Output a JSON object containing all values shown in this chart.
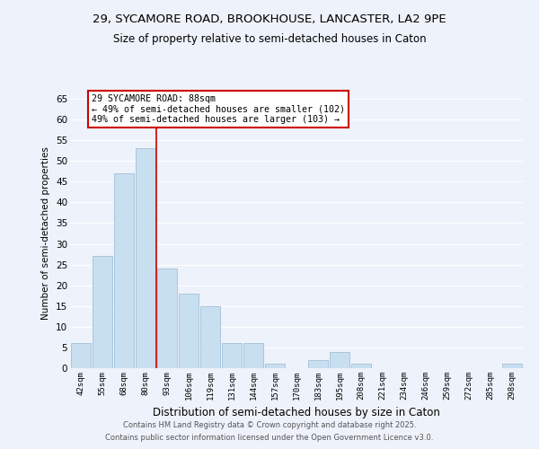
{
  "title_line1": "29, SYCAMORE ROAD, BROOKHOUSE, LANCASTER, LA2 9PE",
  "title_line2": "Size of property relative to semi-detached houses in Caton",
  "xlabel": "Distribution of semi-detached houses by size in Caton",
  "ylabel": "Number of semi-detached properties",
  "bar_labels": [
    "42sqm",
    "55sqm",
    "68sqm",
    "80sqm",
    "93sqm",
    "106sqm",
    "119sqm",
    "131sqm",
    "144sqm",
    "157sqm",
    "170sqm",
    "183sqm",
    "195sqm",
    "208sqm",
    "221sqm",
    "234sqm",
    "246sqm",
    "259sqm",
    "272sqm",
    "285sqm",
    "298sqm"
  ],
  "bar_values": [
    6,
    27,
    47,
    53,
    24,
    18,
    15,
    6,
    6,
    1,
    0,
    2,
    4,
    1,
    0,
    0,
    0,
    0,
    0,
    0,
    1
  ],
  "bar_color": "#c8dff0",
  "bar_edge_color": "#a0c0d8",
  "highlight_line_color": "#cc0000",
  "annotation_title": "29 SYCAMORE ROAD: 88sqm",
  "annotation_line1": "← 49% of semi-detached houses are smaller (102)",
  "annotation_line2": "49% of semi-detached houses are larger (103) →",
  "annotation_box_color": "#ffffff",
  "annotation_box_edge_color": "#cc0000",
  "ylim": [
    0,
    65
  ],
  "yticks": [
    0,
    5,
    10,
    15,
    20,
    25,
    30,
    35,
    40,
    45,
    50,
    55,
    60,
    65
  ],
  "bg_color": "#eef2fa",
  "grid_color": "#ffffff",
  "footer_line1": "Contains HM Land Registry data © Crown copyright and database right 2025.",
  "footer_line2": "Contains public sector information licensed under the Open Government Licence v3.0."
}
